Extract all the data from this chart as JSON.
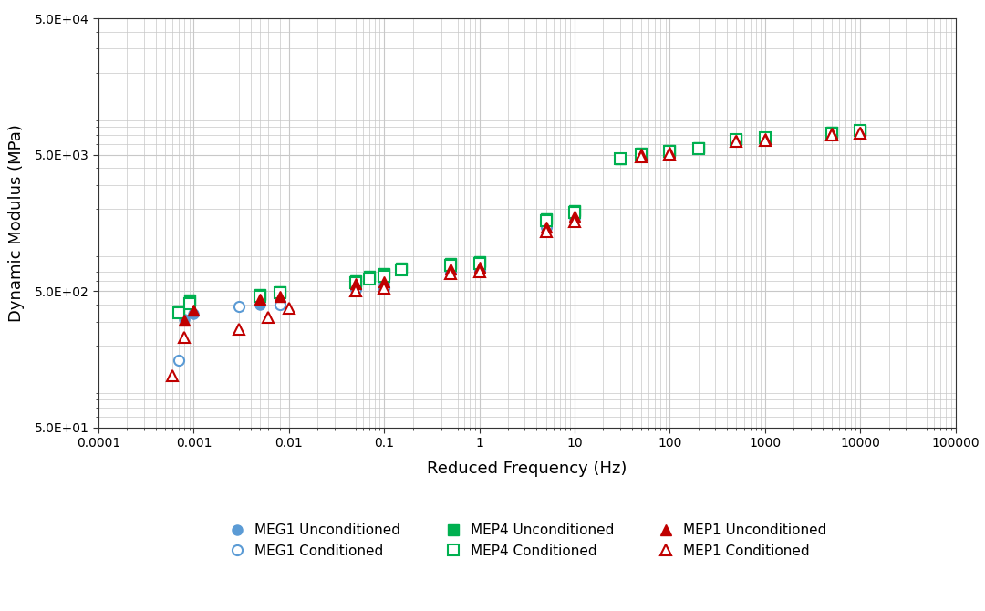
{
  "MEG1_Unconditioned": {
    "freq": [
      0.0008,
      0.001,
      0.005,
      0.008,
      0.05,
      0.1,
      0.5,
      1,
      5,
      10,
      50,
      100,
      500,
      1000,
      5000,
      10000
    ],
    "modulus": [
      310,
      340,
      400,
      420,
      540,
      570,
      720,
      740,
      1500,
      1800,
      5000,
      5200,
      6400,
      6600,
      7100,
      7300
    ],
    "color": "#5B9BD5",
    "marker": "o",
    "filled": true,
    "label": "MEG1 Unconditioned",
    "markersize": 8
  },
  "MEG1_Conditioned": {
    "freq": [
      0.0007,
      0.003,
      0.008,
      0.05,
      0.1,
      0.5,
      1,
      5,
      10,
      50,
      100,
      500,
      1000,
      5000,
      10000
    ],
    "modulus": [
      155,
      385,
      400,
      520,
      530,
      700,
      720,
      1470,
      1750,
      4950,
      5150,
      6300,
      6500,
      7000,
      7150
    ],
    "color": "#5B9BD5",
    "marker": "o",
    "filled": false,
    "label": "MEG1 Conditioned",
    "markersize": 8
  },
  "MEP4_Unconditioned": {
    "freq": [
      0.0007,
      0.0009,
      0.005,
      0.008,
      0.05,
      0.07,
      0.1,
      0.15,
      0.5,
      1,
      5,
      10,
      30,
      50,
      100,
      200,
      500,
      1000,
      5000,
      10000
    ],
    "modulus": [
      360,
      430,
      470,
      495,
      600,
      640,
      670,
      740,
      800,
      820,
      1700,
      1950,
      4700,
      5100,
      5350,
      5600,
      6500,
      6700,
      7300,
      7600
    ],
    "color": "#00B050",
    "marker": "s",
    "filled": true,
    "label": "MEP4 Unconditioned",
    "markersize": 9
  },
  "MEP4_Conditioned": {
    "freq": [
      0.0007,
      0.0009,
      0.005,
      0.008,
      0.05,
      0.07,
      0.1,
      0.15,
      0.5,
      1,
      5,
      10,
      30,
      50,
      100,
      200,
      500,
      1000,
      5000,
      10000
    ],
    "modulus": [
      345,
      405,
      460,
      485,
      580,
      615,
      645,
      715,
      775,
      795,
      1650,
      1900,
      4650,
      5050,
      5300,
      5550,
      6450,
      6650,
      7250,
      7550
    ],
    "color": "#00B050",
    "marker": "s",
    "filled": false,
    "label": "MEP4 Conditioned",
    "markersize": 9
  },
  "MEP1_Unconditioned": {
    "freq": [
      0.0008,
      0.001,
      0.005,
      0.008,
      0.05,
      0.1,
      0.5,
      1,
      5,
      10,
      50,
      100,
      500,
      1000,
      5000,
      10000
    ],
    "modulus": [
      305,
      365,
      440,
      460,
      570,
      590,
      725,
      745,
      1480,
      1780,
      5050,
      5250,
      6400,
      6550,
      7150,
      7350
    ],
    "color": "#C00000",
    "marker": "^",
    "filled": true,
    "label": "MEP1 Unconditioned",
    "markersize": 9
  },
  "MEP1_Conditioned": {
    "freq": [
      0.0006,
      0.0008,
      0.003,
      0.006,
      0.01,
      0.05,
      0.1,
      0.5,
      1,
      5,
      10,
      50,
      100,
      500,
      1000,
      5000,
      10000
    ],
    "modulus": [
      120,
      230,
      265,
      320,
      375,
      500,
      530,
      670,
      690,
      1370,
      1630,
      4850,
      5050,
      6250,
      6400,
      7000,
      7150
    ],
    "color": "#C00000",
    "marker": "^",
    "filled": false,
    "label": "MEP1 Conditioned",
    "markersize": 9
  },
  "xlabel": "Reduced Frequency (Hz)",
  "ylabel": "Dynamic Modulus (MPa)",
  "xlim": [
    0.0001,
    100000
  ],
  "ylim": [
    50,
    50000
  ],
  "background_color": "#ffffff",
  "grid_color": "#c8c8c8",
  "legend_order": [
    0,
    1,
    2,
    3,
    4,
    5
  ],
  "legend_labels_row1": [
    "MEG1 Unconditioned",
    "MEG1 Conditioned",
    "MEP4 Unconditioned"
  ],
  "legend_labels_row2": [
    "MEP4 Conditioned",
    "MEP1 Unconditioned",
    "MEP1 Conditioned"
  ]
}
